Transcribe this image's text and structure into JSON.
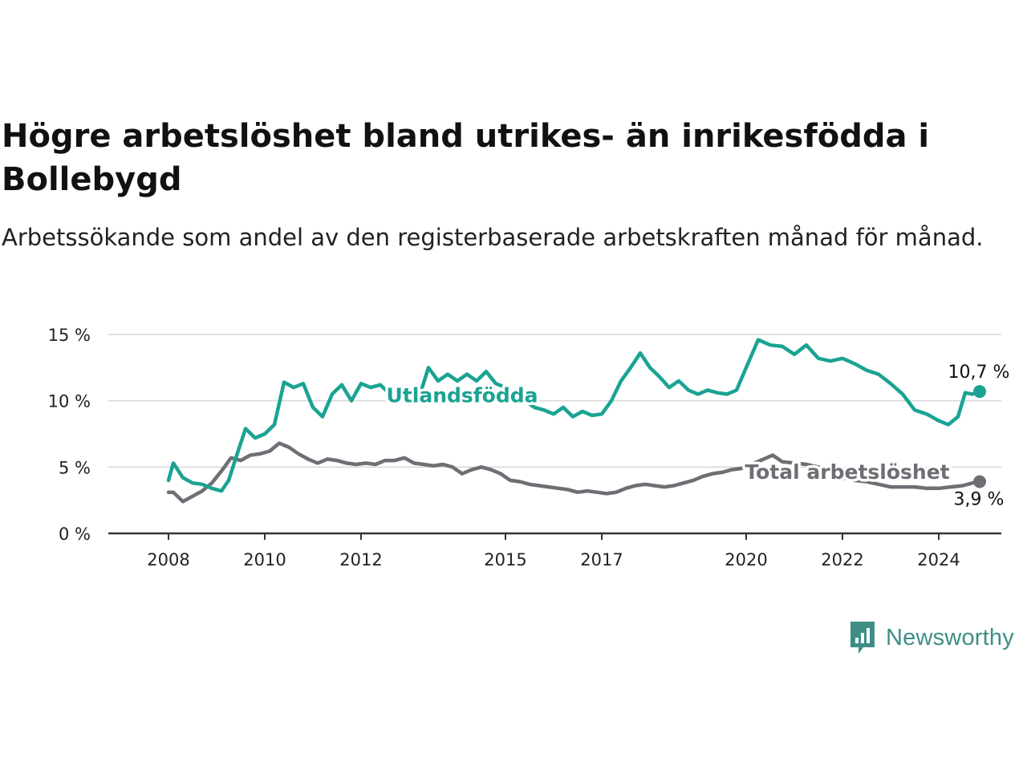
{
  "title": "Högre arbetslöshet bland utrikes- än inrikesfödda i Bollebygd",
  "subtitle": "Arbetssökande som andel av den registerbaserade arbetskraften månad för månad.",
  "brand": {
    "name": "Newsworthy",
    "icon": "newsworthy-logo-icon",
    "color": "#3e8e86"
  },
  "chart_data": {
    "type": "line",
    "ylim": [
      0,
      15
    ],
    "y_ticks": [
      0,
      5,
      10,
      15
    ],
    "y_tick_labels": [
      "0 %",
      "5 %",
      "10 %",
      "15 %"
    ],
    "x_ticks": [
      2008,
      2010,
      2012,
      2015,
      2017,
      2020,
      2022,
      2024
    ],
    "x_tick_labels": [
      "2008",
      "2010",
      "2012",
      "2015",
      "2017",
      "2020",
      "2022",
      "2024"
    ],
    "grid": true,
    "series": [
      {
        "name": "Utlandsfödda",
        "color": "#1aa393",
        "end_label": "10,7 %",
        "points": [
          [
            2008.0,
            4.0
          ],
          [
            2008.1,
            5.3
          ],
          [
            2008.3,
            4.2
          ],
          [
            2008.5,
            3.8
          ],
          [
            2008.7,
            3.7
          ],
          [
            2008.9,
            3.4
          ],
          [
            2009.1,
            3.2
          ],
          [
            2009.25,
            4.0
          ],
          [
            2009.4,
            5.7
          ],
          [
            2009.6,
            7.9
          ],
          [
            2009.8,
            7.2
          ],
          [
            2010.0,
            7.5
          ],
          [
            2010.2,
            8.2
          ],
          [
            2010.4,
            11.4
          ],
          [
            2010.6,
            11.0
          ],
          [
            2010.8,
            11.3
          ],
          [
            2011.0,
            9.5
          ],
          [
            2011.2,
            8.8
          ],
          [
            2011.4,
            10.5
          ],
          [
            2011.6,
            11.2
          ],
          [
            2011.8,
            10.0
          ],
          [
            2012.0,
            11.3
          ],
          [
            2012.2,
            11.0
          ],
          [
            2012.4,
            11.2
          ],
          [
            2012.6,
            10.5
          ],
          [
            2012.8,
            11.0
          ],
          [
            2013.0,
            9.8
          ],
          [
            2013.2,
            10.2
          ],
          [
            2013.4,
            12.5
          ],
          [
            2013.6,
            11.5
          ],
          [
            2013.8,
            12.0
          ],
          [
            2014.0,
            11.5
          ],
          [
            2014.2,
            12.0
          ],
          [
            2014.4,
            11.5
          ],
          [
            2014.6,
            12.2
          ],
          [
            2014.8,
            11.3
          ],
          [
            2015.0,
            11.0
          ],
          [
            2015.2,
            10.5
          ],
          [
            2015.4,
            10.0
          ],
          [
            2015.6,
            9.5
          ],
          [
            2015.8,
            9.3
          ],
          [
            2016.0,
            9.0
          ],
          [
            2016.2,
            9.5
          ],
          [
            2016.4,
            8.8
          ],
          [
            2016.6,
            9.2
          ],
          [
            2016.8,
            8.9
          ],
          [
            2017.0,
            9.0
          ],
          [
            2017.2,
            10.0
          ],
          [
            2017.4,
            11.5
          ],
          [
            2017.6,
            12.5
          ],
          [
            2017.8,
            13.6
          ],
          [
            2018.0,
            12.5
          ],
          [
            2018.2,
            11.8
          ],
          [
            2018.4,
            11.0
          ],
          [
            2018.6,
            11.5
          ],
          [
            2018.8,
            10.8
          ],
          [
            2019.0,
            10.5
          ],
          [
            2019.2,
            10.8
          ],
          [
            2019.4,
            10.6
          ],
          [
            2019.6,
            10.5
          ],
          [
            2019.8,
            10.8
          ],
          [
            2020.0,
            12.5
          ],
          [
            2020.25,
            14.6
          ],
          [
            2020.5,
            14.2
          ],
          [
            2020.75,
            14.1
          ],
          [
            2021.0,
            13.5
          ],
          [
            2021.25,
            14.2
          ],
          [
            2021.5,
            13.2
          ],
          [
            2021.75,
            13.0
          ],
          [
            2022.0,
            13.2
          ],
          [
            2022.25,
            12.8
          ],
          [
            2022.5,
            12.3
          ],
          [
            2022.75,
            12.0
          ],
          [
            2023.0,
            11.3
          ],
          [
            2023.25,
            10.5
          ],
          [
            2023.5,
            9.3
          ],
          [
            2023.75,
            9.0
          ],
          [
            2024.0,
            8.5
          ],
          [
            2024.2,
            8.2
          ],
          [
            2024.4,
            8.8
          ],
          [
            2024.55,
            10.6
          ],
          [
            2024.7,
            10.5
          ],
          [
            2024.85,
            10.7
          ]
        ]
      },
      {
        "name": "Total arbetslöshet",
        "color": "#6e6e74",
        "end_label": "3,9 %",
        "points": [
          [
            2008.0,
            3.1
          ],
          [
            2008.1,
            3.1
          ],
          [
            2008.3,
            2.4
          ],
          [
            2008.5,
            2.8
          ],
          [
            2008.7,
            3.2
          ],
          [
            2008.9,
            3.8
          ],
          [
            2009.1,
            4.7
          ],
          [
            2009.3,
            5.7
          ],
          [
            2009.5,
            5.5
          ],
          [
            2009.7,
            5.9
          ],
          [
            2009.9,
            6.0
          ],
          [
            2010.1,
            6.2
          ],
          [
            2010.3,
            6.8
          ],
          [
            2010.5,
            6.5
          ],
          [
            2010.7,
            6.0
          ],
          [
            2010.9,
            5.6
          ],
          [
            2011.1,
            5.3
          ],
          [
            2011.3,
            5.6
          ],
          [
            2011.5,
            5.5
          ],
          [
            2011.7,
            5.3
          ],
          [
            2011.9,
            5.2
          ],
          [
            2012.1,
            5.3
          ],
          [
            2012.3,
            5.2
          ],
          [
            2012.5,
            5.5
          ],
          [
            2012.7,
            5.5
          ],
          [
            2012.9,
            5.7
          ],
          [
            2013.1,
            5.3
          ],
          [
            2013.3,
            5.2
          ],
          [
            2013.5,
            5.1
          ],
          [
            2013.7,
            5.2
          ],
          [
            2013.9,
            5.0
          ],
          [
            2014.1,
            4.5
          ],
          [
            2014.3,
            4.8
          ],
          [
            2014.5,
            5.0
          ],
          [
            2014.7,
            4.8
          ],
          [
            2014.9,
            4.5
          ],
          [
            2015.1,
            4.0
          ],
          [
            2015.3,
            3.9
          ],
          [
            2015.5,
            3.7
          ],
          [
            2015.7,
            3.6
          ],
          [
            2015.9,
            3.5
          ],
          [
            2016.1,
            3.4
          ],
          [
            2016.3,
            3.3
          ],
          [
            2016.5,
            3.1
          ],
          [
            2016.7,
            3.2
          ],
          [
            2016.9,
            3.1
          ],
          [
            2017.1,
            3.0
          ],
          [
            2017.3,
            3.1
          ],
          [
            2017.5,
            3.4
          ],
          [
            2017.7,
            3.6
          ],
          [
            2017.9,
            3.7
          ],
          [
            2018.1,
            3.6
          ],
          [
            2018.3,
            3.5
          ],
          [
            2018.5,
            3.6
          ],
          [
            2018.7,
            3.8
          ],
          [
            2018.9,
            4.0
          ],
          [
            2019.1,
            4.3
          ],
          [
            2019.3,
            4.5
          ],
          [
            2019.5,
            4.6
          ],
          [
            2019.7,
            4.8
          ],
          [
            2019.9,
            4.9
          ],
          [
            2020.1,
            5.2
          ],
          [
            2020.3,
            5.5
          ],
          [
            2020.55,
            5.9
          ],
          [
            2020.75,
            5.4
          ],
          [
            2021.0,
            5.3
          ],
          [
            2021.25,
            5.2
          ],
          [
            2021.5,
            5.0
          ],
          [
            2021.75,
            4.8
          ],
          [
            2022.0,
            4.2
          ],
          [
            2022.25,
            4.0
          ],
          [
            2022.5,
            3.9
          ],
          [
            2022.75,
            3.7
          ],
          [
            2023.0,
            3.5
          ],
          [
            2023.25,
            3.5
          ],
          [
            2023.5,
            3.5
          ],
          [
            2023.75,
            3.4
          ],
          [
            2024.0,
            3.4
          ],
          [
            2024.25,
            3.5
          ],
          [
            2024.5,
            3.6
          ],
          [
            2024.7,
            3.8
          ],
          [
            2024.85,
            3.9
          ]
        ]
      }
    ],
    "annotations": [
      {
        "series": "Utlandsfödda",
        "text": "Utlandsfödda",
        "at": [
          2014.1,
          9.9
        ]
      },
      {
        "series": "Total arbetslöshet",
        "text": "Total arbetslöshet",
        "at": [
          2022.1,
          4.1
        ]
      }
    ]
  }
}
